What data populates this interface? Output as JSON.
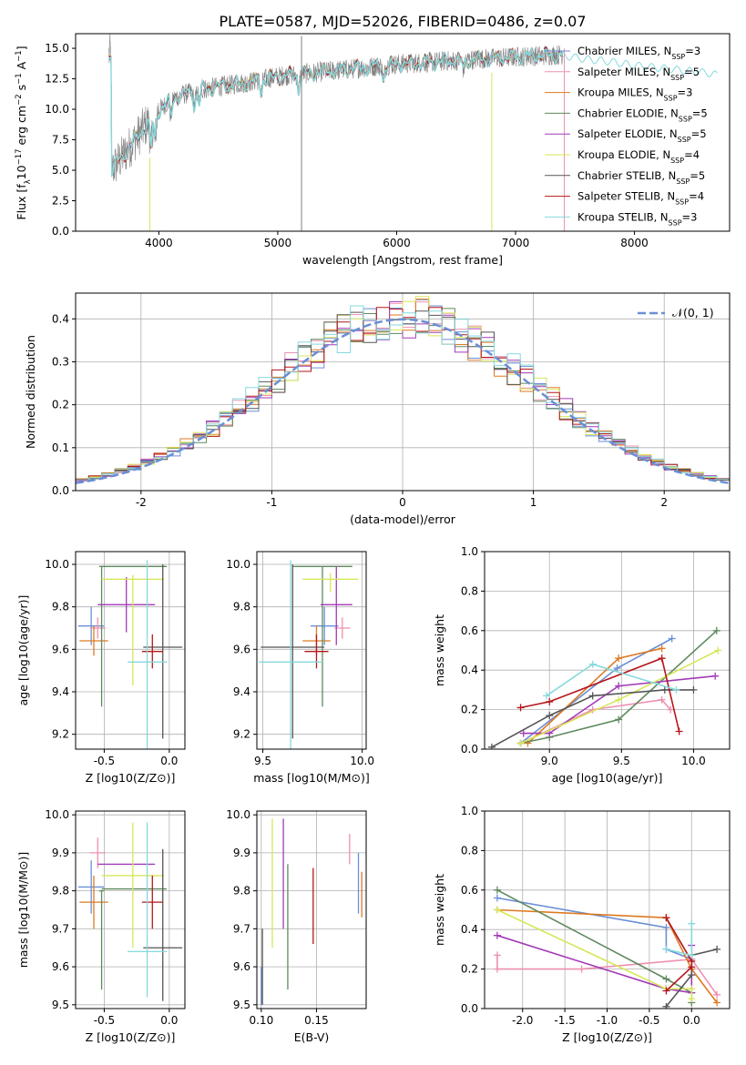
{
  "figure_title": "PLATE=0587, MJD=52026, FIBERID=0486, z=0.07",
  "colors": {
    "chabrier_miles": "#6a8fd6",
    "salpeter_miles": "#ee90b0",
    "kroupa_miles": "#dd7a22",
    "chabrier_elodie": "#5e8a5e",
    "salpeter_elodie": "#a23ab6",
    "kroupa_elodie": "#d8e65a",
    "chabrier_stelib": "#555555",
    "salpeter_stelib": "#b5161a",
    "kroupa_stelib": "#86d9dd",
    "normal": "#6a8fd6",
    "grid": "#b0b0b0",
    "data_spectrum": "#808080"
  },
  "chart_data": [
    {
      "id": "spectrum",
      "type": "line",
      "title": "PLATE=0587, MJD=52026, FIBERID=0486, z=0.07",
      "xlabel": "wavelength [Angstrom, rest frame]",
      "ylabel": "Flux [f_λ 10^-17 erg cm^-2 s^-1 A^-1]",
      "xlim": [
        3300,
        8800
      ],
      "ylim": [
        0,
        16.2
      ],
      "xticks": [
        4000,
        5000,
        6000,
        7000,
        8000
      ],
      "yticks": [
        0.0,
        2.5,
        5.0,
        7.5,
        10.0,
        12.5,
        15.0
      ],
      "grid": false,
      "legend_position": "right",
      "series_names": [
        "Chabrier MILES, N_SSP=3",
        "Salpeter MILES, N_SSP=5",
        "Kroupa MILES, N_SSP=3",
        "Chabrier ELODIE, N_SSP=5",
        "Salpeter ELODIE, N_SSP=5",
        "Kroupa ELODIE, N_SSP=4",
        "Chabrier STELIB, N_SSP=5",
        "Salpeter STELIB, N_SSP=4",
        "Kroupa STELIB, N_SSP=3"
      ],
      "continuum": {
        "x": [
          3600,
          3700,
          3800,
          3900,
          4000,
          4100,
          4200,
          4400,
          4600,
          4800,
          5000,
          5200,
          5500,
          6000,
          6500,
          7000,
          7400
        ],
        "y": [
          5.0,
          6.2,
          7.5,
          8.8,
          9.9,
          10.8,
          11.2,
          11.7,
          12.0,
          12.3,
          12.7,
          12.9,
          13.2,
          13.7,
          14.0,
          14.3,
          14.5
        ]
      },
      "spikes": [
        {
          "x": 3925,
          "y0": 0,
          "y1": 6.0,
          "color": "kroupa_elodie"
        },
        {
          "x": 5200,
          "y0": 0,
          "y1": 16.0,
          "color": "data_spectrum"
        },
        {
          "x": 6800,
          "y0": 0,
          "y1": 13.0,
          "color": "kroupa_elodie"
        },
        {
          "x": 7410,
          "y0": 0,
          "y1": 15.0,
          "color": "salpeter_miles"
        }
      ],
      "extended_model": {
        "x": [
          7400,
          7600,
          7800,
          8000,
          8200,
          8400,
          8600,
          8700
        ],
        "y": [
          14.4,
          14.1,
          13.9,
          13.6,
          13.4,
          13.2,
          13.0,
          12.8
        ]
      }
    },
    {
      "id": "residuals",
      "type": "line",
      "xlabel": "(data-model)/error",
      "ylabel": "Normed distribution",
      "xlim": [
        -2.5,
        2.5
      ],
      "ylim": [
        0,
        0.46
      ],
      "xticks": [
        -2,
        -1,
        0,
        1,
        2
      ],
      "yticks": [
        0.0,
        0.1,
        0.2,
        0.3,
        0.4
      ],
      "grid": true,
      "legend_position": "top-right",
      "normal_label": "𝒩(0, 1)",
      "bin_width": 0.1
    },
    {
      "id": "age_vs_Z",
      "type": "scatter",
      "xlabel": "Z [log10(Z/Z⊙)]",
      "ylabel": "age [log10(age/yr)]",
      "xlim": [
        -0.72,
        0.12
      ],
      "ylim": [
        9.13,
        10.06
      ],
      "xticks": [
        -0.5,
        0.0
      ],
      "yticks": [
        9.2,
        9.4,
        9.6,
        9.8,
        10.0
      ],
      "grid": true,
      "points": [
        {
          "color": "chabrier_miles",
          "x": -0.6,
          "xerr": 0.1,
          "y": 9.71,
          "yerr": [
            0.09,
            0.09
          ]
        },
        {
          "color": "salpeter_miles",
          "x": -0.55,
          "xerr": 0.06,
          "y": 9.7,
          "yerr": [
            0.05,
            0.05
          ]
        },
        {
          "color": "kroupa_miles",
          "x": -0.58,
          "xerr": 0.11,
          "y": 9.64,
          "yerr": [
            0.07,
            0.07
          ]
        },
        {
          "color": "chabrier_elodie",
          "x": -0.52,
          "xerr": 0.02,
          "y": 9.99,
          "yerr": [
            0.66,
            0.0
          ]
        },
        {
          "color": "chabrier_elodie",
          "x": -0.27,
          "xerr": 0.25,
          "y": 9.99,
          "yerr": [
            0.0,
            0.0
          ]
        },
        {
          "color": "salpeter_elodie",
          "x": -0.33,
          "xerr": 0.22,
          "y": 9.81,
          "yerr": [
            0.13,
            0.13
          ]
        },
        {
          "color": "kroupa_elodie",
          "x": -0.28,
          "xerr": 0.24,
          "y": 9.93,
          "yerr": [
            0.5,
            0.02
          ]
        },
        {
          "color": "chabrier_stelib",
          "x": -0.05,
          "xerr": 0.15,
          "y": 9.61,
          "yerr": [
            0.43,
            0.39
          ]
        },
        {
          "color": "salpeter_stelib",
          "x": -0.13,
          "xerr": 0.08,
          "y": 9.59,
          "yerr": [
            0.08,
            0.08
          ]
        },
        {
          "color": "kroupa_stelib",
          "x": -0.17,
          "xerr": 0.15,
          "y": 9.54,
          "yerr": [
            0.41,
            0.48
          ]
        }
      ]
    },
    {
      "id": "age_vs_mass",
      "type": "scatter",
      "xlabel": "mass [log10(M/M⊙)]",
      "ylabel": "",
      "xlim": [
        9.47,
        10.02
      ],
      "ylim": [
        9.13,
        10.06
      ],
      "xticks": [
        9.5,
        10.0
      ],
      "yticks": [
        9.2,
        9.4,
        9.6,
        9.8,
        10.0
      ],
      "grid": true,
      "points": [
        {
          "color": "chabrier_miles",
          "x": 9.81,
          "xerr": 0.07,
          "y": 9.71,
          "yerr": [
            0.09,
            0.09
          ]
        },
        {
          "color": "salpeter_miles",
          "x": 9.9,
          "xerr": 0.04,
          "y": 9.7,
          "yerr": [
            0.05,
            0.05
          ]
        },
        {
          "color": "kroupa_miles",
          "x": 9.77,
          "xerr": 0.07,
          "y": 9.64,
          "yerr": [
            0.07,
            0.07
          ]
        },
        {
          "color": "chabrier_elodie",
          "x": 9.8,
          "xerr": 0.15,
          "y": 9.99,
          "yerr": [
            0.66,
            0.0
          ]
        },
        {
          "color": "salpeter_elodie",
          "x": 9.87,
          "xerr": 0.08,
          "y": 9.81,
          "yerr": [
            0.19,
            0.18
          ]
        },
        {
          "color": "kroupa_elodie",
          "x": 9.84,
          "xerr": 0.14,
          "y": 9.93,
          "yerr": [
            0.06,
            0.03
          ]
        },
        {
          "color": "chabrier_stelib",
          "x": 9.65,
          "xerr": 0.16,
          "y": 9.61,
          "yerr": [
            0.43,
            0.39
          ]
        },
        {
          "color": "salpeter_stelib",
          "x": 9.77,
          "xerr": 0.06,
          "y": 9.59,
          "yerr": [
            0.08,
            0.08
          ]
        },
        {
          "color": "kroupa_stelib",
          "x": 9.64,
          "xerr": 0.16,
          "y": 9.54,
          "yerr": [
            0.41,
            0.48
          ]
        }
      ]
    },
    {
      "id": "mass_weight_vs_age",
      "type": "line",
      "xlabel": "age [log10(age/yr)]",
      "ylabel": "mass weight",
      "xlim": [
        8.55,
        10.25
      ],
      "ylim": [
        0,
        1.0
      ],
      "xticks": [
        9.0,
        9.5,
        10.0
      ],
      "yticks": [
        0.0,
        0.2,
        0.4,
        0.6,
        0.8,
        1.0
      ],
      "grid": true,
      "series": [
        {
          "color": "chabrier_miles",
          "x": [
            8.8,
            9.47,
            9.85
          ],
          "y": [
            0.03,
            0.41,
            0.56
          ]
        },
        {
          "color": "salpeter_miles",
          "x": [
            8.8,
            9.3,
            9.78,
            9.84
          ],
          "y": [
            0.03,
            0.2,
            0.25,
            0.2
          ]
        },
        {
          "color": "kroupa_miles",
          "x": [
            8.85,
            9.48,
            9.78
          ],
          "y": [
            0.03,
            0.46,
            0.51
          ]
        },
        {
          "color": "chabrier_elodie",
          "x": [
            8.8,
            9.0,
            9.48,
            10.16
          ],
          "y": [
            0.03,
            0.06,
            0.15,
            0.6
          ]
        },
        {
          "color": "salpeter_elodie",
          "x": [
            8.82,
            9.0,
            9.48,
            10.15
          ],
          "y": [
            0.08,
            0.08,
            0.32,
            0.37
          ]
        },
        {
          "color": "kroupa_elodie",
          "x": [
            8.8,
            9.48,
            10.17
          ],
          "y": [
            0.03,
            0.25,
            0.5
          ]
        },
        {
          "color": "chabrier_stelib",
          "x": [
            8.6,
            9.0,
            9.3,
            9.8,
            10.0
          ],
          "y": [
            0.01,
            0.17,
            0.27,
            0.3,
            0.3
          ]
        },
        {
          "color": "salpeter_stelib",
          "x": [
            8.8,
            9.0,
            9.78,
            9.9
          ],
          "y": [
            0.21,
            0.24,
            0.46,
            0.09
          ]
        },
        {
          "color": "kroupa_stelib",
          "x": [
            8.98,
            9.3,
            9.88
          ],
          "y": [
            0.27,
            0.43,
            0.3
          ]
        }
      ]
    },
    {
      "id": "mass_vs_Z",
      "type": "scatter",
      "xlabel": "Z [log10(Z/Z⊙)]",
      "ylabel": "mass [log10(M/M⊙)]",
      "xlim": [
        -0.72,
        0.12
      ],
      "ylim": [
        9.49,
        10.01
      ],
      "xticks": [
        -0.5,
        0.0
      ],
      "yticks": [
        9.5,
        9.6,
        9.7,
        9.8,
        9.9,
        10.0
      ],
      "grid": true,
      "points": [
        {
          "color": "chabrier_miles",
          "x": -0.6,
          "xerr": 0.1,
          "y": 9.81,
          "yerr": [
            0.07,
            0.07
          ]
        },
        {
          "color": "salpeter_miles",
          "x": -0.55,
          "xerr": 0.06,
          "y": 9.9,
          "yerr": [
            0.04,
            0.04
          ]
        },
        {
          "color": "kroupa_miles",
          "x": -0.58,
          "xerr": 0.11,
          "y": 9.77,
          "yerr": [
            0.07,
            0.07
          ]
        },
        {
          "color": "chabrier_elodie",
          "x": -0.52,
          "xerr": 0.02,
          "y": 9.8,
          "yerr": [
            0.26,
            0.0
          ]
        },
        {
          "color": "chabrier_elodie",
          "x": -0.27,
          "xerr": 0.25,
          "y": 9.805,
          "yerr": [
            0.0,
            0.0
          ]
        },
        {
          "color": "salpeter_elodie",
          "x": -0.33,
          "xerr": 0.22,
          "y": 9.87,
          "yerr": [
            0.0,
            0.0
          ]
        },
        {
          "color": "kroupa_elodie",
          "x": -0.28,
          "xerr": 0.24,
          "y": 9.84,
          "yerr": [
            0.19,
            0.14
          ]
        },
        {
          "color": "chabrier_stelib",
          "x": -0.05,
          "xerr": 0.15,
          "y": 9.65,
          "yerr": [
            0.14,
            0.26
          ]
        },
        {
          "color": "salpeter_stelib",
          "x": -0.13,
          "xerr": 0.08,
          "y": 9.77,
          "yerr": [
            0.07,
            0.07
          ]
        },
        {
          "color": "kroupa_stelib",
          "x": -0.17,
          "xerr": 0.15,
          "y": 9.64,
          "yerr": [
            0.12,
            0.34
          ]
        }
      ]
    },
    {
      "id": "mass_vs_ebv",
      "type": "scatter",
      "xlabel": "E(B-V)",
      "ylabel": "",
      "xlim": [
        0.096,
        0.195
      ],
      "ylim": [
        9.49,
        10.01
      ],
      "xticks": [
        0.1,
        0.15
      ],
      "yticks": [
        9.5,
        9.6,
        9.7,
        9.8,
        9.9,
        10.0
      ],
      "grid": true,
      "vlines": [
        {
          "color": "chabrier_miles",
          "x": 0.1,
          "y0": 9.5,
          "y1": 9.6
        },
        {
          "color": "chabrier_miles",
          "x": 0.188,
          "y0": 9.74,
          "y1": 9.9
        },
        {
          "color": "kroupa_miles",
          "x": 0.191,
          "y0": 9.73,
          "y1": 9.85
        },
        {
          "color": "salpeter_miles",
          "x": 0.18,
          "y0": 9.87,
          "y1": 9.95
        },
        {
          "color": "kroupa_elodie",
          "x": 0.11,
          "y0": 9.65,
          "y1": 9.99
        },
        {
          "color": "salpeter_elodie",
          "x": 0.12,
          "y0": 9.7,
          "y1": 9.99
        },
        {
          "color": "chabrier_elodie",
          "x": 0.124,
          "y0": 9.54,
          "y1": 9.87
        },
        {
          "color": "salpeter_stelib",
          "x": 0.147,
          "y0": 9.66,
          "y1": 9.86
        },
        {
          "color": "chabrier_stelib",
          "x": 0.101,
          "y0": 9.5,
          "y1": 9.7
        }
      ]
    },
    {
      "id": "mass_weight_vs_Z",
      "type": "line",
      "xlabel": "Z [log10(Z/Z⊙)]",
      "ylabel": "mass weight",
      "xlim": [
        -2.45,
        0.45
      ],
      "ylim": [
        0,
        1.0
      ],
      "xticks": [
        -2.0,
        -1.5,
        -1.0,
        -0.5,
        0.0
      ],
      "yticks": [
        0.0,
        0.2,
        0.4,
        0.6,
        0.8,
        1.0
      ],
      "grid": true,
      "series": [
        {
          "color": "chabrier_miles",
          "x": [
            -2.3,
            -0.3,
            -0.3,
            0.0
          ],
          "y": [
            0.56,
            0.41,
            0.3,
            0.25
          ]
        },
        {
          "color": "salpeter_miles",
          "x": [
            -2.3,
            -2.3,
            -1.3,
            0.0,
            0.3
          ],
          "y": [
            0.27,
            0.2,
            0.2,
            0.25,
            0.07
          ]
        },
        {
          "color": "kroupa_miles",
          "x": [
            -2.3,
            -0.3,
            0.0,
            0.3
          ],
          "y": [
            0.5,
            0.46,
            0.2,
            0.03
          ]
        },
        {
          "color": "chabrier_elodie",
          "x": [
            -2.3,
            -0.3,
            0.0,
            0.0
          ],
          "y": [
            0.6,
            0.15,
            0.08,
            0.03
          ]
        },
        {
          "color": "salpeter_elodie",
          "x": [
            -2.3,
            -0.3,
            0.0,
            0.0
          ],
          "y": [
            0.37,
            0.1,
            0.08,
            0.32
          ]
        },
        {
          "color": "kroupa_elodie",
          "x": [
            -2.3,
            -0.3,
            0.0,
            0.0
          ],
          "y": [
            0.5,
            0.1,
            0.1,
            0.05
          ]
        },
        {
          "color": "chabrier_stelib",
          "x": [
            -0.3,
            0.0,
            0.0,
            0.3
          ],
          "y": [
            0.01,
            0.17,
            0.27,
            0.3
          ]
        },
        {
          "color": "salpeter_stelib",
          "x": [
            -0.3,
            0.0,
            0.0,
            -0.3
          ],
          "y": [
            0.46,
            0.24,
            0.21,
            0.09
          ]
        },
        {
          "color": "kroupa_stelib",
          "x": [
            -0.3,
            0.0,
            0.0
          ],
          "y": [
            0.3,
            0.27,
            0.43
          ]
        }
      ]
    }
  ]
}
